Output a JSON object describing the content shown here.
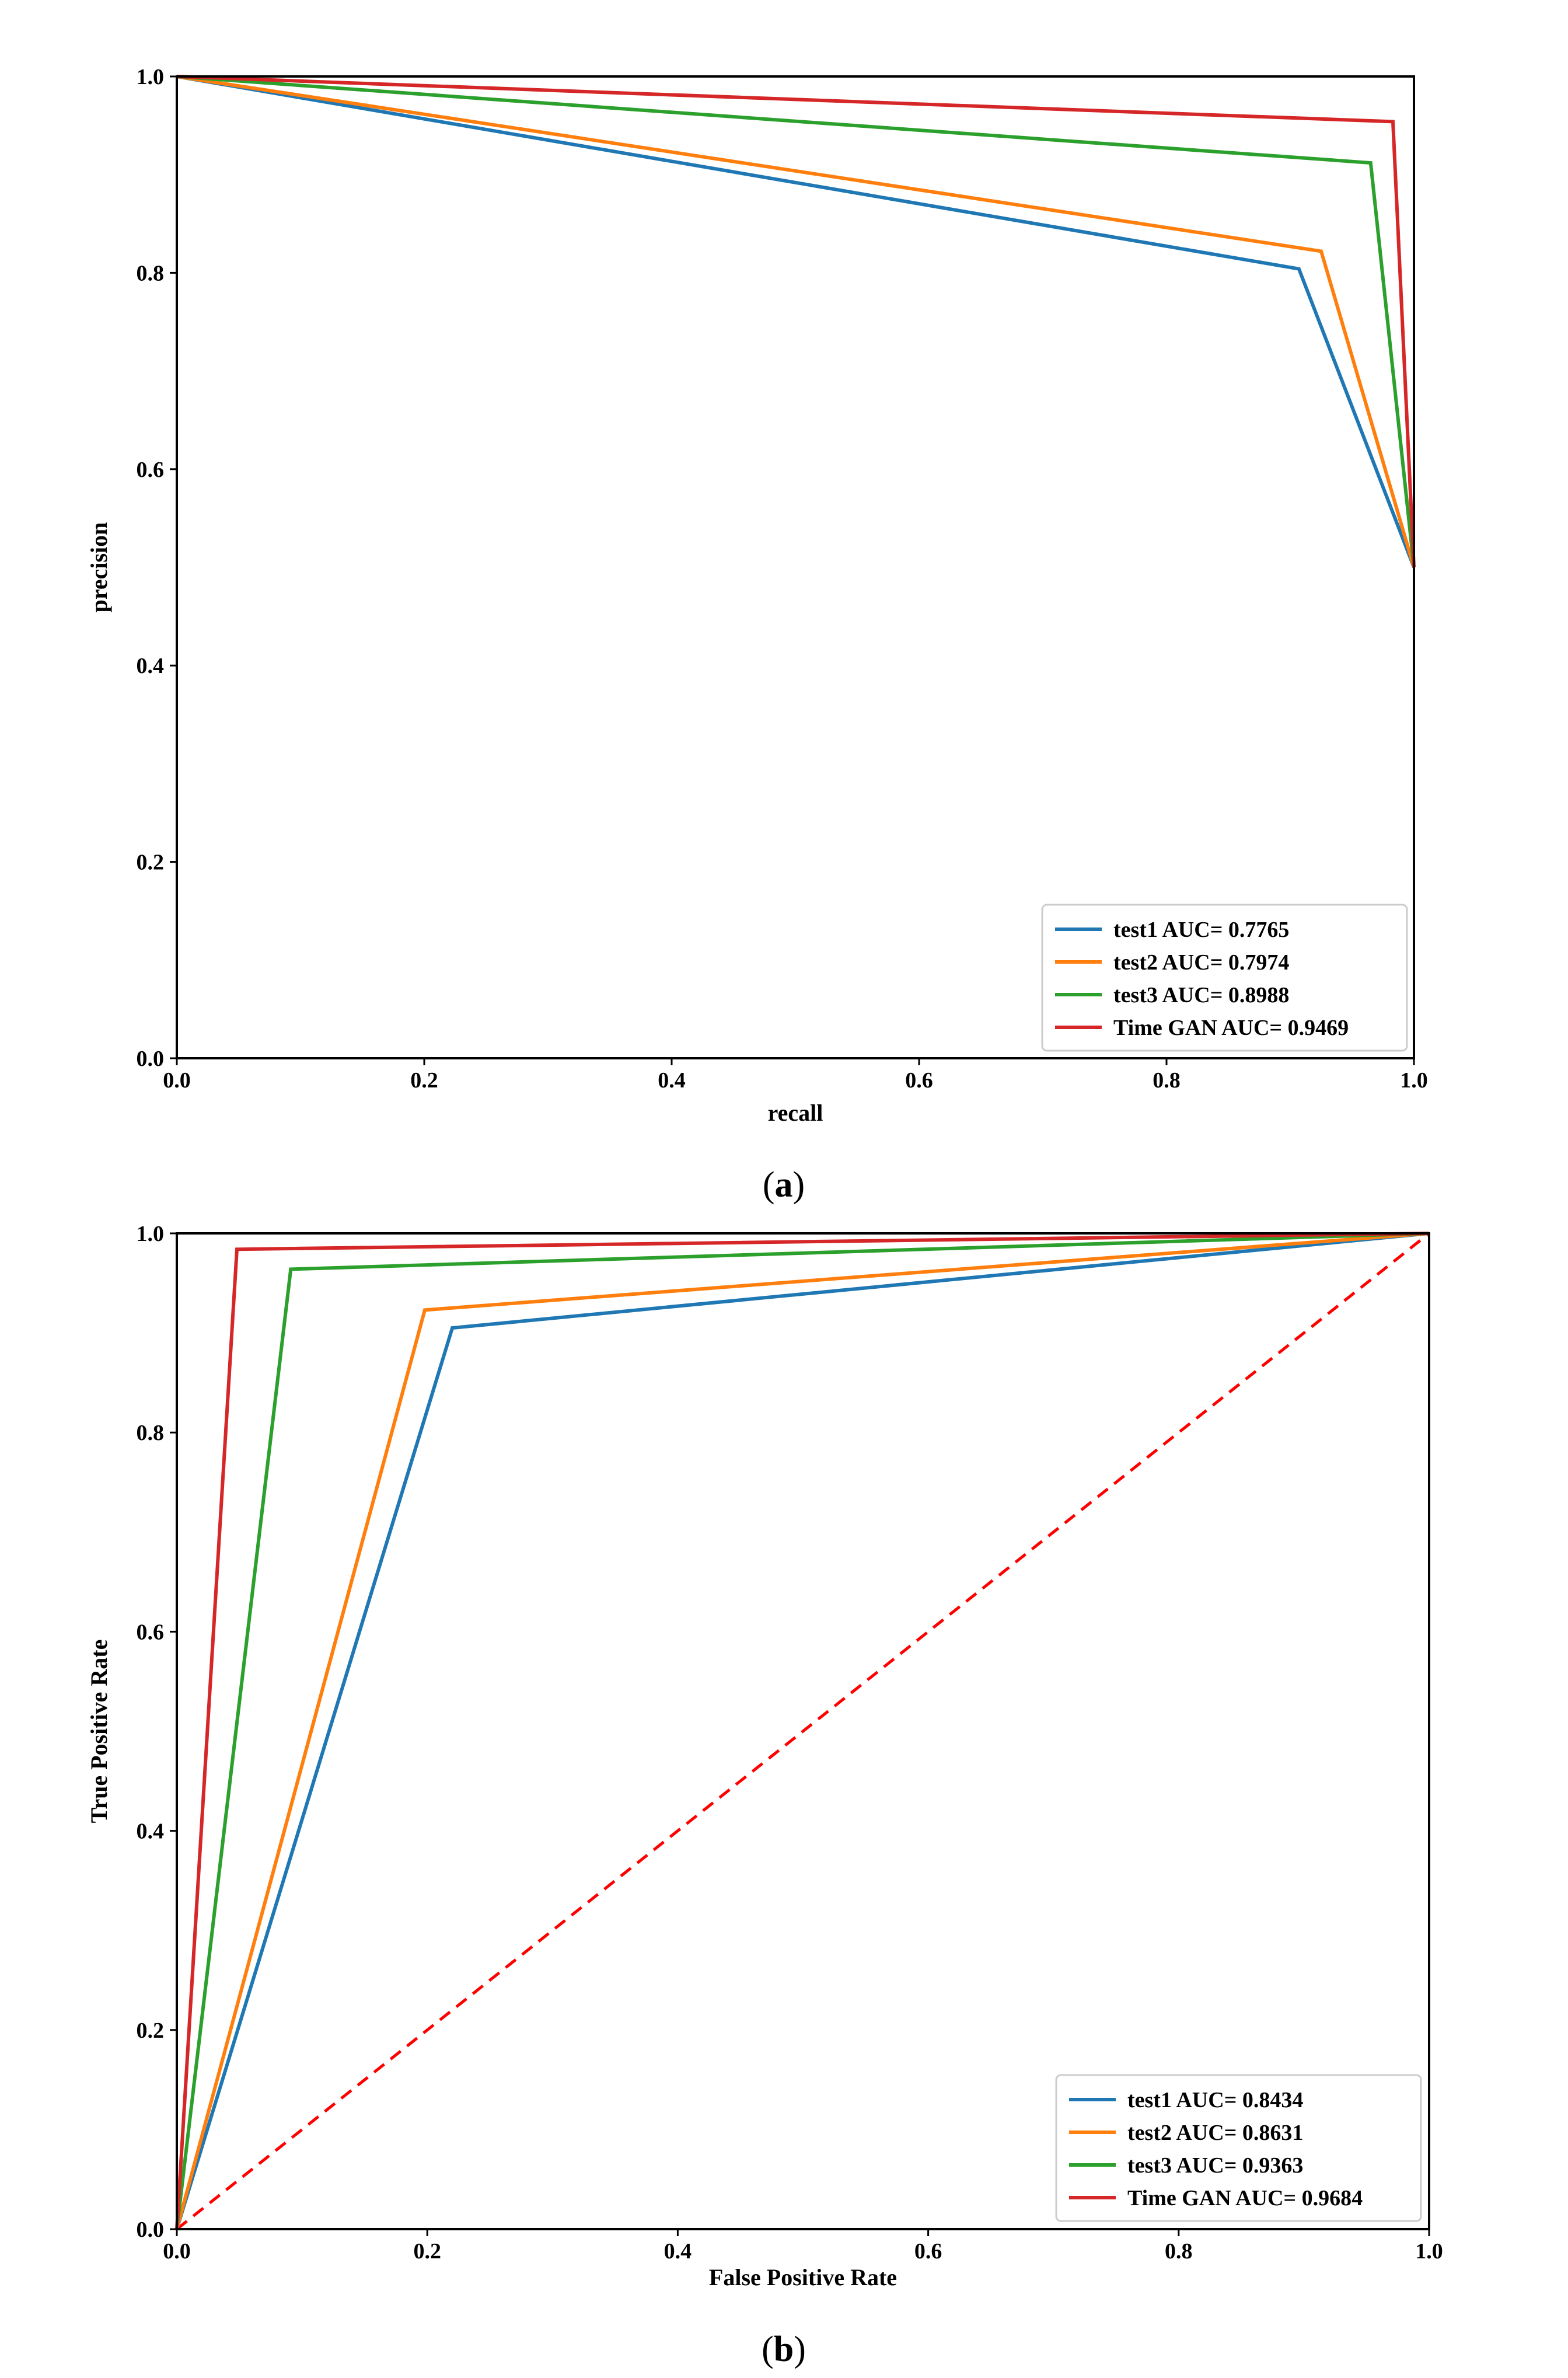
{
  "chart_data": [
    {
      "type": "line",
      "panel": "a",
      "xlabel": "recall",
      "ylabel": "precision",
      "xlim": [
        0,
        1
      ],
      "ylim": [
        0,
        1
      ],
      "xticks": [
        "0.0",
        "0.2",
        "0.4",
        "0.6",
        "0.8",
        "1.0"
      ],
      "yticks": [
        "0.0",
        "0.2",
        "0.4",
        "0.6",
        "0.8",
        "1.0"
      ],
      "legend_position": "lower-right",
      "series": [
        {
          "name": "test1 AUC= 0.7765",
          "color": "#1f77b4",
          "x": [
            0,
            0.907,
            1
          ],
          "y": [
            1,
            0.804,
            0.5
          ]
        },
        {
          "name": "test2 AUC= 0.7974",
          "color": "#ff7f0e",
          "x": [
            0,
            0.925,
            1
          ],
          "y": [
            1,
            0.822,
            0.5
          ]
        },
        {
          "name": "test3 AUC= 0.8988",
          "color": "#2ca02c",
          "x": [
            0,
            0.965,
            1
          ],
          "y": [
            1,
            0.912,
            0.5
          ]
        },
        {
          "name": "Time GAN AUC= 0.9469",
          "color": "#d62728",
          "x": [
            0,
            0.983,
            1
          ],
          "y": [
            1,
            0.954,
            0.5
          ]
        }
      ],
      "caption": {
        "open": "(",
        "letter": "a",
        "close": ")"
      }
    },
    {
      "type": "line",
      "panel": "b",
      "xlabel": "False Positive Rate",
      "ylabel": "True Positive Rate",
      "xlim": [
        0,
        1
      ],
      "ylim": [
        0,
        1
      ],
      "xticks": [
        "0.0",
        "0.2",
        "0.4",
        "0.6",
        "0.8",
        "1.0"
      ],
      "yticks": [
        "0.0",
        "0.2",
        "0.4",
        "0.6",
        "0.8",
        "1.0"
      ],
      "legend_position": "lower-right",
      "series": [
        {
          "name": "test1 AUC= 0.8434",
          "color": "#1f77b4",
          "x": [
            0,
            0.22,
            1
          ],
          "y": [
            0,
            0.905,
            1
          ]
        },
        {
          "name": "test2 AUC= 0.8631",
          "color": "#ff7f0e",
          "x": [
            0,
            0.198,
            1
          ],
          "y": [
            0,
            0.923,
            1
          ]
        },
        {
          "name": "test3 AUC= 0.9363",
          "color": "#2ca02c",
          "x": [
            0,
            0.091,
            1
          ],
          "y": [
            0,
            0.964,
            1
          ]
        },
        {
          "name": "Time GAN AUC= 0.9684",
          "color": "#d62728",
          "x": [
            0,
            0.048,
            1
          ],
          "y": [
            0,
            0.984,
            1
          ]
        }
      ],
      "reference_line": {
        "color": "#ff0000",
        "style": "dashed",
        "x": [
          0,
          1
        ],
        "y": [
          0,
          1
        ]
      },
      "caption": {
        "open": "(",
        "letter": "b",
        "close": ")"
      }
    }
  ]
}
